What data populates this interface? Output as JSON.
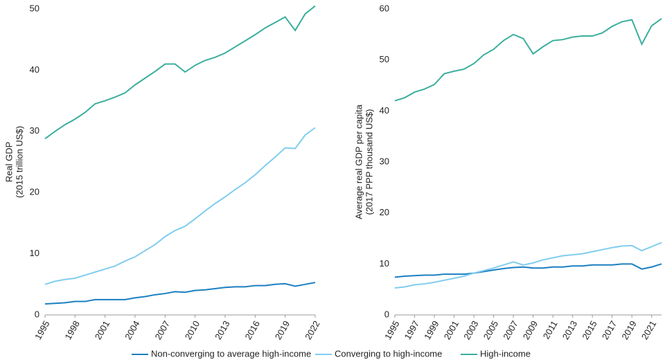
{
  "chart_data": [
    {
      "type": "line",
      "y_label": [
        "Real GDP",
        "(2015 trillion US$)"
      ],
      "x": [
        1995,
        1996,
        1997,
        1998,
        1999,
        2000,
        2001,
        2002,
        2003,
        2004,
        2005,
        2006,
        2007,
        2008,
        2009,
        2010,
        2011,
        2012,
        2013,
        2014,
        2015,
        2016,
        2017,
        2018,
        2019,
        2020,
        2021,
        2022
      ],
      "xlim": [
        1995,
        2022
      ],
      "xticks": [
        1995,
        1998,
        2001,
        2004,
        2007,
        2010,
        2013,
        2016,
        2019,
        2022
      ],
      "ylim": [
        0,
        50
      ],
      "yticks": [
        0,
        10,
        20,
        30,
        40,
        50
      ],
      "series": [
        {
          "name": "Non-converging to average high-income",
          "color": "#1b7fc1",
          "values": [
            1.8,
            1.9,
            2.0,
            2.2,
            2.2,
            2.5,
            2.5,
            2.5,
            2.5,
            2.8,
            3.0,
            3.3,
            3.5,
            3.8,
            3.7,
            4.0,
            4.1,
            4.3,
            4.5,
            4.6,
            4.6,
            4.8,
            4.8,
            5.0,
            5.1,
            4.7,
            5.0,
            5.3
          ]
        },
        {
          "name": "Converging to high-income",
          "color": "#80cdee",
          "values": [
            5.0,
            5.5,
            5.8,
            6.0,
            6.5,
            7.0,
            7.5,
            8.0,
            8.8,
            9.5,
            10.5,
            11.5,
            12.8,
            13.8,
            14.5,
            15.7,
            17.0,
            18.2,
            19.3,
            20.5,
            21.6,
            22.9,
            24.4,
            25.8,
            27.3,
            27.2,
            29.4,
            30.6
          ]
        },
        {
          "name": "High-income",
          "color": "#3aae9d",
          "values": [
            28.8,
            30.0,
            31.1,
            32.0,
            33.1,
            34.5,
            35.0,
            35.6,
            36.3,
            37.6,
            38.7,
            39.8,
            41.0,
            41.0,
            39.7,
            40.8,
            41.6,
            42.1,
            42.8,
            43.8,
            44.8,
            45.8,
            46.9,
            47.8,
            48.7,
            46.5,
            49.2,
            50.5
          ]
        }
      ]
    },
    {
      "type": "line",
      "y_label": [
        "Average real GDP per capita",
        "(2017 PPP thousand US$)"
      ],
      "x": [
        1995,
        1996,
        1997,
        1998,
        1999,
        2000,
        2001,
        2002,
        2003,
        2004,
        2005,
        2006,
        2007,
        2008,
        2009,
        2010,
        2011,
        2012,
        2013,
        2014,
        2015,
        2016,
        2017,
        2018,
        2019,
        2020,
        2021,
        2022
      ],
      "xlim": [
        1995,
        2022
      ],
      "xticks": [
        1995,
        1997,
        1999,
        2001,
        2003,
        2005,
        2007,
        2009,
        2011,
        2013,
        2015,
        2017,
        2019,
        2021
      ],
      "ylim": [
        0,
        60
      ],
      "yticks": [
        0,
        10,
        20,
        30,
        40,
        50,
        60
      ],
      "series": [
        {
          "color": "#1b7fc1",
          "values": [
            7.4,
            7.6,
            7.7,
            7.8,
            7.8,
            8.0,
            8.0,
            8.0,
            8.2,
            8.5,
            8.8,
            9.1,
            9.3,
            9.4,
            9.2,
            9.2,
            9.4,
            9.4,
            9.6,
            9.6,
            9.8,
            9.8,
            9.8,
            10.0,
            10.0,
            9.0,
            9.4,
            10.0
          ]
        },
        {
          "color": "#80cdee",
          "values": [
            5.3,
            5.5,
            5.9,
            6.1,
            6.4,
            6.8,
            7.2,
            7.6,
            8.2,
            8.7,
            9.2,
            9.8,
            10.4,
            9.8,
            10.2,
            10.8,
            11.2,
            11.6,
            11.8,
            12.0,
            12.4,
            12.8,
            13.2,
            13.5,
            13.6,
            12.6,
            13.4,
            14.2
          ]
        },
        {
          "color": "#3aae9d",
          "values": [
            42.0,
            42.6,
            43.7,
            44.3,
            45.2,
            47.3,
            47.8,
            48.2,
            49.3,
            51.0,
            52.1,
            53.8,
            55.0,
            54.2,
            51.2,
            52.6,
            53.8,
            54.0,
            54.5,
            54.7,
            54.7,
            55.3,
            56.6,
            57.5,
            57.9,
            53.1,
            56.7,
            58.1
          ]
        }
      ]
    }
  ]
}
